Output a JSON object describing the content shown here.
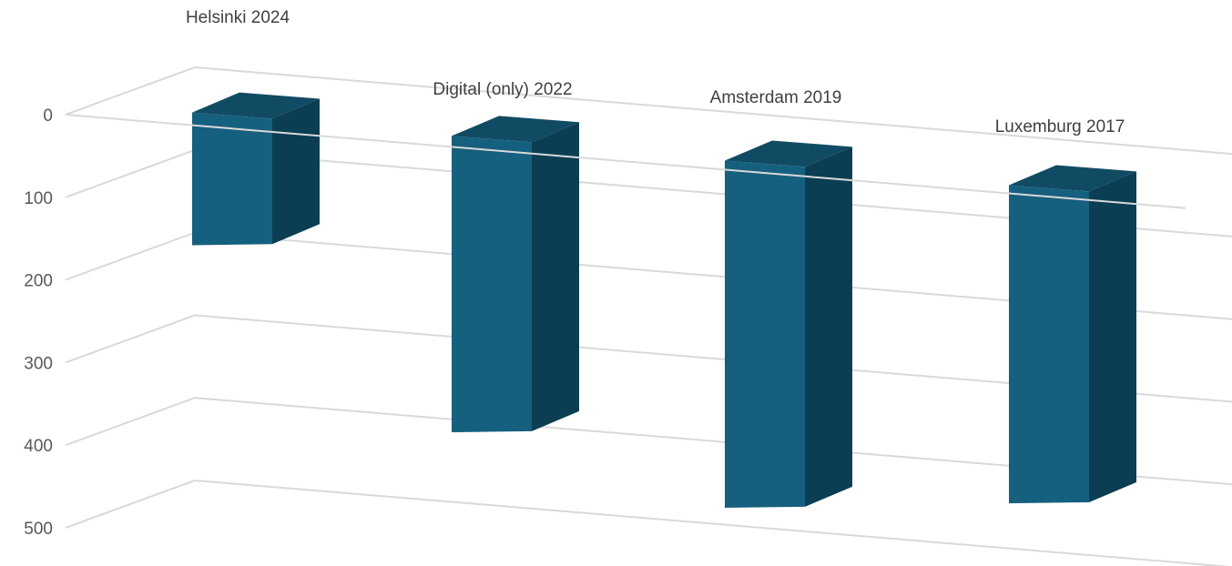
{
  "chart_data": {
    "type": "bar",
    "categories": [
      "Helsinki 2024",
      "Digital (only) 2022",
      "Amsterdam 2019",
      "Luxemburg 2017"
    ],
    "values": [
      175,
      400,
      470,
      430
    ],
    "ylim": [
      0,
      500
    ],
    "yticks": [
      "0",
      "100",
      "200",
      "300",
      "400",
      "500"
    ],
    "grid": true,
    "reversed_y": true,
    "three_d": true,
    "colors": {
      "front": "#16607f",
      "side": "#0b3e52",
      "top": "#114b63",
      "grid": "#d9d9d9",
      "text": "#595959"
    }
  }
}
